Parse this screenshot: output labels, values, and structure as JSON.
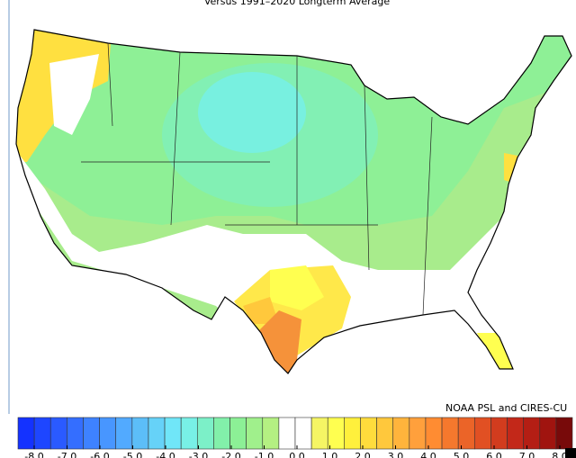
{
  "title": "Versus 1991–2020 Longterm Average",
  "credit": "NOAA PSL and CIRES-CU",
  "colorbar": {
    "colors": [
      "#1432ff",
      "#1e46ff",
      "#2a5aff",
      "#346eff",
      "#3e82ff",
      "#4896ff",
      "#52aaff",
      "#5cbef8",
      "#66d2f8",
      "#70e6f8",
      "#78f0e6",
      "#7cf0c8",
      "#82f0aa",
      "#8cf096",
      "#a0f08c",
      "#b4f082",
      "#ffffff",
      "#ffffff",
      "#f5f564",
      "#ffff50",
      "#fff03c",
      "#ffdc3c",
      "#ffc83c",
      "#ffb43c",
      "#ffa03c",
      "#ff8c32",
      "#f5782d",
      "#eb6428",
      "#e15023",
      "#d23c1e",
      "#c32819",
      "#b41e14",
      "#a0140f",
      "#780a0a"
    ],
    "ticks": [
      {
        "value": -8,
        "label": "-8.0"
      },
      {
        "value": -7,
        "label": "-7.0"
      },
      {
        "value": -6,
        "label": "-6.0"
      },
      {
        "value": -5,
        "label": "-5.0"
      },
      {
        "value": -4,
        "label": "-4.0"
      },
      {
        "value": -3,
        "label": "-3.0"
      },
      {
        "value": -2,
        "label": "-2.0"
      },
      {
        "value": -1,
        "label": "-1.0"
      },
      {
        "value": 0,
        "label": "0.0"
      },
      {
        "value": 1,
        "label": "1.0"
      },
      {
        "value": 2,
        "label": "2.0"
      },
      {
        "value": 3,
        "label": "3.0"
      },
      {
        "value": 4,
        "label": "4.0"
      },
      {
        "value": 5,
        "label": "5.0"
      },
      {
        "value": 6,
        "label": "6.0"
      },
      {
        "value": 7,
        "label": "7.0"
      },
      {
        "value": 8,
        "label": "8.0"
      }
    ]
  }
}
